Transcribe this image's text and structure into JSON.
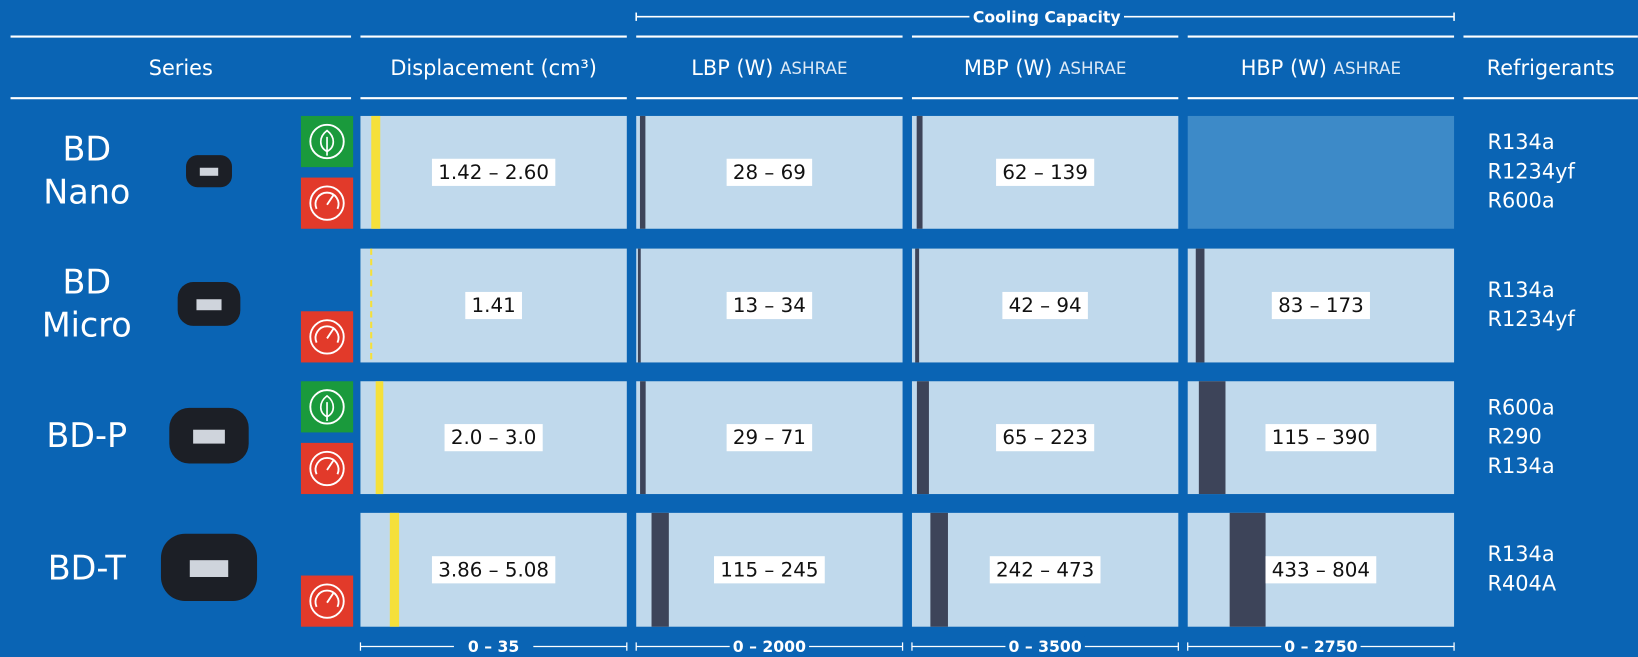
{
  "top_header": "Cooling Capacity",
  "columns": [
    {
      "name": "Series"
    },
    {
      "name": "Displacement (cm³)"
    },
    {
      "name": "LBP (W)",
      "note": "ASHRAE"
    },
    {
      "name": "MBP (W)",
      "note": "ASHRAE"
    },
    {
      "name": "HBP (W)",
      "note": "ASHRAE"
    },
    {
      "name": "Refrigerants"
    }
  ],
  "scales": [
    {
      "label": "0 – 35",
      "min": 0,
      "max": 35
    },
    {
      "label": "0 – 2000",
      "min": 0,
      "max": 2000
    },
    {
      "label": "0 – 3500",
      "min": 0,
      "max": 3500
    },
    {
      "label": "0 – 2750",
      "min": 0,
      "max": 2750
    }
  ],
  "rows": [
    {
      "series": [
        "BD",
        "Nano"
      ],
      "eco": true,
      "performance": true,
      "cells": [
        {
          "label": "1.42 – 2.60",
          "min": 1.42,
          "max": 2.6
        },
        {
          "label": "28 – 69",
          "min": 28,
          "max": 69
        },
        {
          "label": "62 – 139",
          "min": 62,
          "max": 139
        },
        null
      ],
      "refrigerants": [
        "R134a",
        "R1234yf",
        "R600a"
      ]
    },
    {
      "series": [
        "BD",
        "Micro"
      ],
      "eco": false,
      "performance": true,
      "cells": [
        {
          "label": "1.41",
          "min": 1.41,
          "max": 1.41
        },
        {
          "label": "13 – 34",
          "min": 13,
          "max": 34
        },
        {
          "label": "42 – 94",
          "min": 42,
          "max": 94
        },
        {
          "label": "83 – 173",
          "min": 83,
          "max": 173
        }
      ],
      "refrigerants": [
        "R134a",
        "R1234yf"
      ]
    },
    {
      "series": [
        "BD-P"
      ],
      "eco": true,
      "performance": true,
      "cells": [
        {
          "label": "2.0 – 3.0",
          "min": 2.0,
          "max": 3.0
        },
        {
          "label": "29 – 71",
          "min": 29,
          "max": 71
        },
        {
          "label": "65 – 223",
          "min": 65,
          "max": 223
        },
        {
          "label": "115 – 390",
          "min": 115,
          "max": 390
        }
      ],
      "refrigerants": [
        "R600a",
        "R290",
        "R134a"
      ]
    },
    {
      "series": [
        "BD-T"
      ],
      "eco": false,
      "performance": true,
      "cells": [
        {
          "label": "3.86 – 5.08",
          "min": 3.86,
          "max": 5.08
        },
        {
          "label": "115 – 245",
          "min": 115,
          "max": 245
        },
        {
          "label": "242 – 473",
          "min": 242,
          "max": 473
        },
        {
          "label": "433 – 804",
          "min": 433,
          "max": 804
        }
      ],
      "refrigerants": [
        "R134a",
        "R404A"
      ]
    }
  ]
}
